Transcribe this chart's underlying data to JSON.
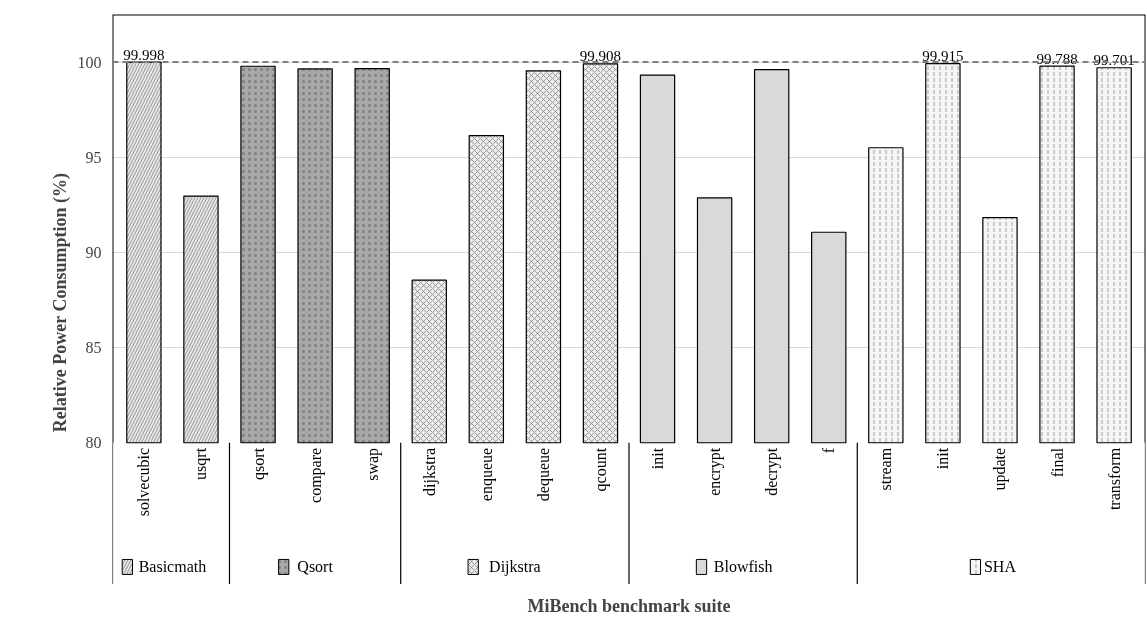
{
  "chart_data": {
    "type": "bar",
    "xlabel": "MiBench benchmark suite",
    "ylabel": "Relative Power Consumption (%)",
    "categories": [
      "solvecubic",
      "usqrt",
      "qsort",
      "compare",
      "swap",
      "dijkstra",
      "enqueue",
      "dequeue",
      "qcount",
      "init",
      "encrypt",
      "decrypt",
      "f",
      "stream",
      "init",
      "update",
      "final",
      "transform"
    ],
    "series": [
      {
        "name": "Basicmath",
        "color": "#e6e6e6",
        "values": [
          99.998,
          92.96,
          null,
          null,
          null,
          null,
          null,
          null,
          null,
          null,
          null,
          null,
          null,
          null,
          null,
          null,
          null,
          null
        ],
        "value_labels": [
          "99.998",
          null,
          null,
          null,
          null,
          null,
          null,
          null,
          null,
          null,
          null,
          null,
          null,
          null,
          null,
          null,
          null,
          null
        ]
      },
      {
        "name": "Qsort",
        "color": "#a8a8a8",
        "values": [
          null,
          null,
          99.78,
          99.64,
          99.66,
          null,
          null,
          null,
          null,
          null,
          null,
          null,
          null,
          null,
          null,
          null,
          null,
          null
        ]
      },
      {
        "name": "Dijkstra",
        "color": "#ececec",
        "values": [
          null,
          null,
          null,
          null,
          null,
          88.54,
          96.14,
          99.54,
          99.908,
          null,
          null,
          null,
          null,
          null,
          null,
          null,
          null,
          null
        ],
        "value_labels": [
          null,
          null,
          null,
          null,
          null,
          null,
          null,
          null,
          "99.908",
          null,
          null,
          null,
          null,
          null,
          null,
          null,
          null,
          null
        ]
      },
      {
        "name": "Blowfish",
        "color": "#d9d9d9",
        "values": [
          null,
          null,
          null,
          null,
          null,
          null,
          null,
          null,
          null,
          99.32,
          92.87,
          99.6,
          91.06,
          null,
          null,
          null,
          null,
          null
        ]
      },
      {
        "name": "SHA",
        "color": "#f5f5f5",
        "values": [
          null,
          null,
          null,
          null,
          null,
          null,
          null,
          null,
          null,
          null,
          null,
          null,
          null,
          95.5,
          99.915,
          91.83,
          99.788,
          99.701
        ],
        "value_labels": [
          null,
          null,
          null,
          null,
          null,
          null,
          null,
          null,
          null,
          null,
          null,
          null,
          null,
          null,
          "99.915",
          null,
          "99.788",
          "99.701"
        ]
      }
    ],
    "ylim": [
      80,
      102.5
    ],
    "yticks": [
      80,
      85,
      90,
      95,
      100
    ],
    "grid": "y",
    "legend": "bottom",
    "ref_lines": [
      {
        "axis": "y",
        "value": 100,
        "color": "#7f7f7f",
        "line_style": "dashed"
      }
    ]
  }
}
